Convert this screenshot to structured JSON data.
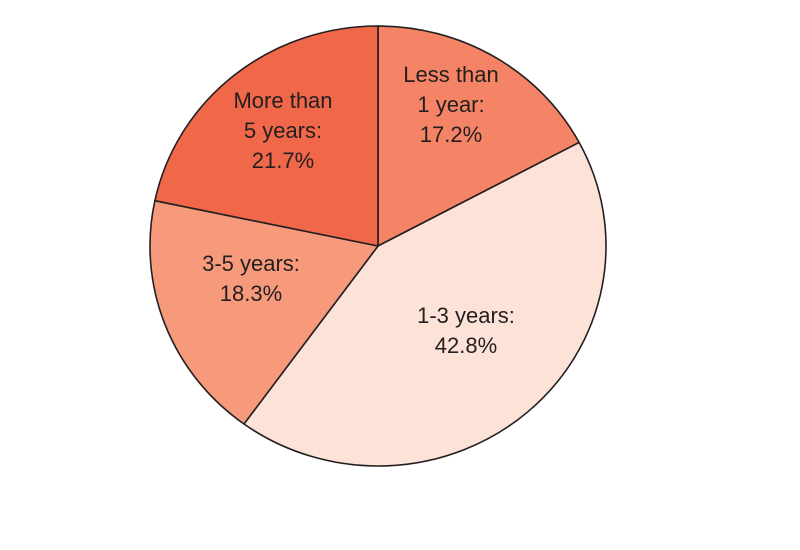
{
  "chart_data": {
    "type": "pie",
    "title": "",
    "slices": [
      {
        "label_lines": [
          "Less than",
          "1 year:",
          "17.2%"
        ],
        "category": "Less than 1 year",
        "value": 17.2,
        "color": "#f58466"
      },
      {
        "label_lines": [
          "1-3 years:",
          "42.8%"
        ],
        "category": "1-3 years",
        "value": 42.8,
        "color": "#fde2d7"
      },
      {
        "label_lines": [
          "3-5 years:",
          "18.3%"
        ],
        "category": "3-5 years",
        "value": 18.3,
        "color": "#f69a7b"
      },
      {
        "label_lines": [
          "More than",
          "5 years:",
          "21.7%"
        ],
        "category": "More than 5 years",
        "value": 21.7,
        "color": "#f1674a"
      }
    ],
    "start_angle_deg": 0,
    "direction": "clockwise",
    "legend": "none"
  }
}
